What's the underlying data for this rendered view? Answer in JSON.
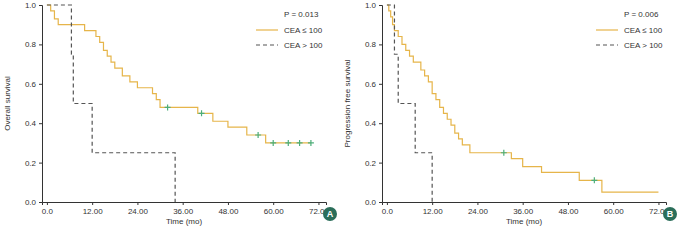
{
  "chart_data": [
    {
      "type": "line",
      "x_label": "Time (mo)",
      "y_label": "Overall survival",
      "annotations": [
        "P = 0.013",
        "A"
      ],
      "legend": "upper right",
      "xlim": [
        -1.3,
        74
      ],
      "xticks": [
        {
          "value": 0,
          "label": "0.0"
        },
        {
          "value": 12,
          "label": "12.00"
        },
        {
          "value": 24,
          "label": "24.00"
        },
        {
          "value": 36,
          "label": "36.00"
        },
        {
          "value": 48,
          "label": "48.00"
        },
        {
          "value": 60,
          "label": "60.00"
        },
        {
          "value": 72,
          "label": "72.00"
        }
      ],
      "ylim": [
        0,
        1
      ],
      "yticks": [
        {
          "value": 0,
          "label": "0.0"
        },
        0.2,
        0.4,
        0.6,
        0.8,
        {
          "value": 1,
          "label": "1.0"
        }
      ],
      "series": [
        {
          "name": "CEA ≤ 100",
          "color": "#e6b54a",
          "line_style": "solid",
          "x": [
            0,
            1,
            2,
            3,
            10,
            13,
            14,
            15,
            16,
            17,
            18,
            20,
            22,
            24,
            28,
            29,
            30,
            40,
            44,
            48,
            53,
            58,
            70
          ],
          "values": [
            1.0,
            0.97,
            0.93,
            0.9,
            0.87,
            0.84,
            0.81,
            0.77,
            0.74,
            0.71,
            0.68,
            0.64,
            0.61,
            0.58,
            0.55,
            0.52,
            0.48,
            0.45,
            0.41,
            0.38,
            0.34,
            0.3,
            0.3
          ],
          "censored_x": [
            32,
            41,
            56,
            60,
            64,
            67,
            70
          ],
          "censored_values": [
            0.48,
            0.45,
            0.34,
            0.3,
            0.3,
            0.3,
            0.3
          ]
        },
        {
          "name": "CEA > 100",
          "color": "#555555",
          "line_style": "dashed",
          "x": [
            0,
            6.5,
            7,
            12,
            34
          ],
          "values": [
            1.0,
            0.75,
            0.5,
            0.25,
            0
          ]
        }
      ]
    },
    {
      "type": "line",
      "x_label": "Time (mo)",
      "y_label": "Progression free survival",
      "annotations": [
        "P = 0.006",
        "B"
      ],
      "legend": "upper right",
      "xlim": [
        -1.3,
        74
      ],
      "xticks": [
        {
          "value": 0,
          "label": "0.0"
        },
        {
          "value": 12,
          "label": "12.00"
        },
        {
          "value": 24,
          "label": "24.00"
        },
        {
          "value": 36,
          "label": "36.00"
        },
        {
          "value": 48,
          "label": "48.00"
        },
        {
          "value": 60,
          "label": "60.00"
        },
        {
          "value": 72,
          "label": "72.00"
        }
      ],
      "ylim": [
        0,
        1
      ],
      "yticks": [
        {
          "value": 0,
          "label": "0.0"
        },
        0.2,
        0.4,
        0.6,
        0.8,
        {
          "value": 1,
          "label": "1.0"
        }
      ],
      "series": [
        {
          "name": "CEA ≤ 100",
          "color": "#e6b54a",
          "line_style": "solid",
          "x": [
            0,
            0.5,
            1,
            1.5,
            2,
            3,
            4,
            5,
            6,
            7,
            9,
            10,
            11,
            12,
            13,
            14,
            15,
            16,
            17,
            18,
            19,
            20,
            22,
            33,
            36,
            41,
            51,
            57,
            72
          ],
          "values": [
            1.0,
            0.97,
            0.94,
            0.9,
            0.87,
            0.84,
            0.8,
            0.77,
            0.74,
            0.71,
            0.67,
            0.64,
            0.61,
            0.55,
            0.52,
            0.48,
            0.45,
            0.42,
            0.39,
            0.35,
            0.32,
            0.29,
            0.25,
            0.22,
            0.18,
            0.15,
            0.11,
            0.05,
            0.05
          ],
          "censored_x": [
            31,
            55
          ],
          "censored_values": [
            0.25,
            0.11
          ]
        },
        {
          "name": "CEA > 100",
          "color": "#555555",
          "line_style": "dashed",
          "x": [
            0,
            2,
            3,
            7.5,
            12
          ],
          "values": [
            1.0,
            0.75,
            0.5,
            0.25,
            0
          ]
        }
      ]
    }
  ]
}
